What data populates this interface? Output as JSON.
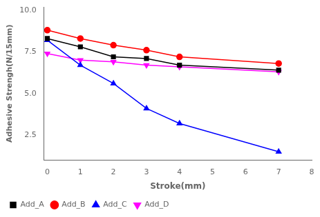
{
  "chart_data": {
    "type": "line",
    "xlabel": "Stroke(mm)",
    "ylabel": "Adhesive Strengh(N/15mm)",
    "x": [
      0,
      1,
      2,
      3,
      4,
      7
    ],
    "series": [
      {
        "name": "Add_A",
        "color": "#000000",
        "marker": "square",
        "values": [
          8.3,
          7.8,
          7.2,
          7.1,
          6.7,
          6.4
        ]
      },
      {
        "name": "Add_B",
        "color": "#ff0000",
        "marker": "circle",
        "values": [
          8.8,
          8.3,
          7.9,
          7.6,
          7.2,
          6.8
        ]
      },
      {
        "name": "Add_C",
        "color": "#0000ff",
        "marker": "triangle_up",
        "values": [
          8.2,
          6.7,
          5.6,
          4.1,
          3.2,
          1.5
        ]
      },
      {
        "name": "Add_D",
        "color": "#ff00ff",
        "marker": "triangle_down",
        "values": [
          7.4,
          7.0,
          6.9,
          6.7,
          6.6,
          6.3
        ]
      }
    ],
    "xlim": [
      -0.1,
      8
    ],
    "ylim": [
      1.0,
      10.2
    ],
    "xticks": [
      0,
      1,
      2,
      3,
      4,
      5,
      6,
      7,
      8
    ],
    "yticks": [
      2.5,
      {
        "value": 5,
        "label": "5.0"
      },
      7.5,
      {
        "value": 10,
        "label": "10.0"
      }
    ],
    "grid": false,
    "legend": "lower left"
  }
}
